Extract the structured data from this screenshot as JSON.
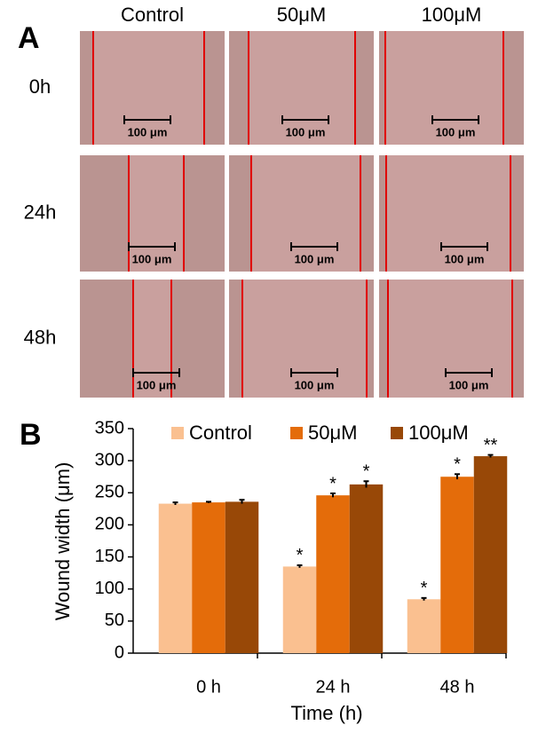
{
  "panel_a": {
    "label": "A",
    "columns": [
      "Control",
      "50μM",
      "100μM"
    ],
    "rows": [
      "0h",
      "24h",
      "48h"
    ],
    "scale_labels": [
      "100 μm",
      "100 μm",
      "100 μm",
      "100 μm",
      "100 μm",
      "100 μm",
      "100 μm",
      "100 μm",
      "100 μm"
    ]
  },
  "chart_data": {
    "type": "bar",
    "panel_label": "B",
    "x_label": "Time (h)",
    "y_label": "Wound width (μm)",
    "categories": [
      "0 h",
      "24 h",
      "48 h"
    ],
    "series": [
      {
        "name": "Control",
        "color": "#fac090",
        "values": [
          233,
          135,
          84
        ],
        "errors": [
          2,
          2,
          2
        ],
        "significance": [
          null,
          "*",
          "*"
        ]
      },
      {
        "name": "50μM",
        "color": "#e46c0a",
        "values": [
          235,
          246,
          275
        ],
        "errors": [
          1,
          3,
          4
        ],
        "significance": [
          null,
          "*",
          "*"
        ]
      },
      {
        "name": "100μM",
        "color": "#984807",
        "values": [
          236,
          263,
          307
        ],
        "errors": [
          3,
          5,
          2
        ],
        "significance": [
          null,
          "*",
          "**"
        ]
      }
    ],
    "ylim": [
      0,
      350
    ],
    "yticks": [
      0,
      50,
      100,
      150,
      200,
      250,
      300,
      350
    ],
    "legend": "top",
    "grid": false
  }
}
